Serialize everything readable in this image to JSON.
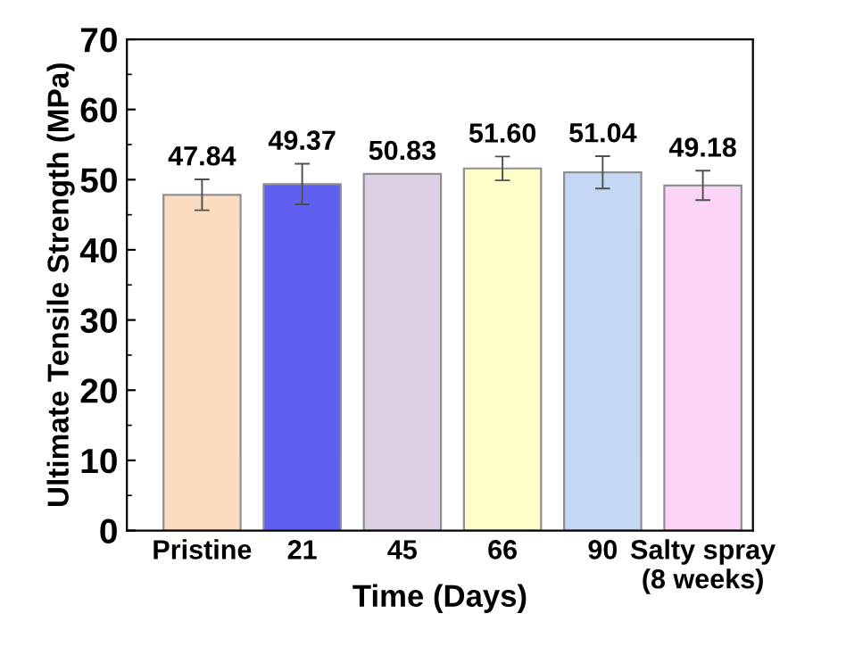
{
  "chart_data": {
    "type": "bar",
    "xlabel": "Time (Days)",
    "ylabel": "Ultimate Tensile Strength (MPa)",
    "categories": [
      "Pristine",
      "21",
      "45",
      "66",
      "90",
      "Salty spray\n(8 weeks)"
    ],
    "values": [
      47.84,
      49.37,
      50.83,
      51.6,
      51.04,
      49.18
    ],
    "value_labels": [
      "47.84",
      "49.37",
      "50.83",
      "51.60",
      "51.04",
      "49.18"
    ],
    "errors": [
      2.2,
      2.9,
      null,
      1.7,
      2.3,
      2.1
    ],
    "colors": [
      "#fbdcc0",
      "#6060f0",
      "#dcd0e4",
      "#fefec8",
      "#c4d8f4",
      "#fcd4f8"
    ],
    "ylim": [
      0,
      70
    ],
    "yticks": [
      0,
      10,
      20,
      30,
      40,
      50,
      60,
      70
    ],
    "grid": false,
    "legend": false
  }
}
